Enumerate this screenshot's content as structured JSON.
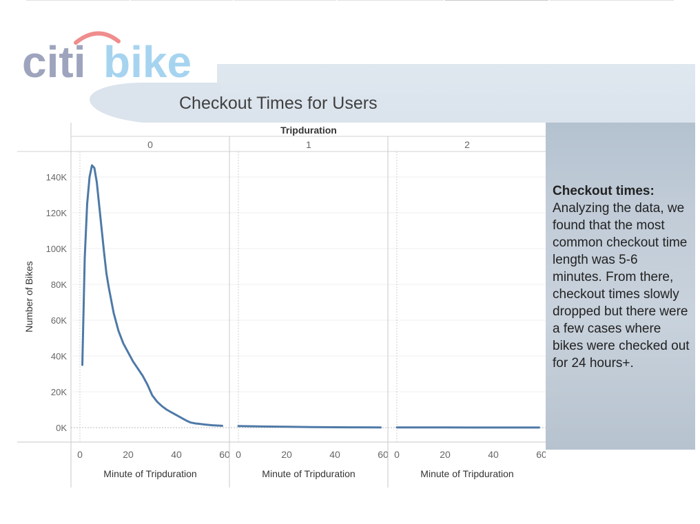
{
  "title": "Checkout Times for Users",
  "logo": {
    "word1": "citi",
    "word2": "bike"
  },
  "description": {
    "heading": "Checkout times:",
    "body": "Analyzing the data, we found that the most common checkout time length was 5-6 minutes. From there, checkout times slowly dropped but there were a few cases where bikes were checked out for 24 hours+."
  },
  "colors": {
    "line": "#4e79a7",
    "logo_gray": "#9ea4bd",
    "logo_blue": "#a6d4f0",
    "logo_arc": "#f08d8d"
  },
  "chart_data": {
    "type": "line",
    "column_header": "Tripduration",
    "panel_labels": [
      "0",
      "1",
      "2"
    ],
    "xlabel": "Minute of Tripduration",
    "ylabel": "Number of Bikes",
    "xlim": [
      0,
      60
    ],
    "ylim": [
      0,
      140000
    ],
    "xticks": [
      0,
      20,
      40,
      60
    ],
    "yticks": [
      0,
      20000,
      40000,
      60000,
      80000,
      100000,
      120000,
      140000
    ],
    "ytick_labels": [
      "0K",
      "20K",
      "40K",
      "60K",
      "80K",
      "100K",
      "120K",
      "140K"
    ],
    "panels": [
      {
        "label": "0",
        "x": [
          1,
          2,
          3,
          4,
          5,
          6,
          7,
          8,
          9,
          10,
          11,
          12,
          13,
          14,
          16,
          18,
          20,
          22,
          24,
          26,
          28,
          30,
          32,
          34,
          36,
          38,
          40,
          42,
          44,
          46,
          48,
          50,
          52,
          55,
          59
        ],
        "y": [
          35000,
          95000,
          125000,
          140000,
          146500,
          145000,
          137000,
          124000,
          111000,
          98000,
          86000,
          78000,
          71000,
          64000,
          54000,
          47000,
          42000,
          37000,
          33000,
          29000,
          24000,
          18000,
          14500,
          12000,
          10000,
          8500,
          7000,
          5500,
          4000,
          2800,
          2300,
          2000,
          1700,
          1300,
          1000
        ]
      },
      {
        "label": "1",
        "x": [
          0,
          10,
          20,
          30,
          40,
          50,
          59
        ],
        "y": [
          900,
          600,
          450,
          300,
          200,
          150,
          100
        ]
      },
      {
        "label": "2",
        "x": [
          0,
          10,
          20,
          30,
          40,
          50,
          59
        ],
        "y": [
          80,
          70,
          60,
          55,
          50,
          45,
          40
        ]
      }
    ]
  }
}
